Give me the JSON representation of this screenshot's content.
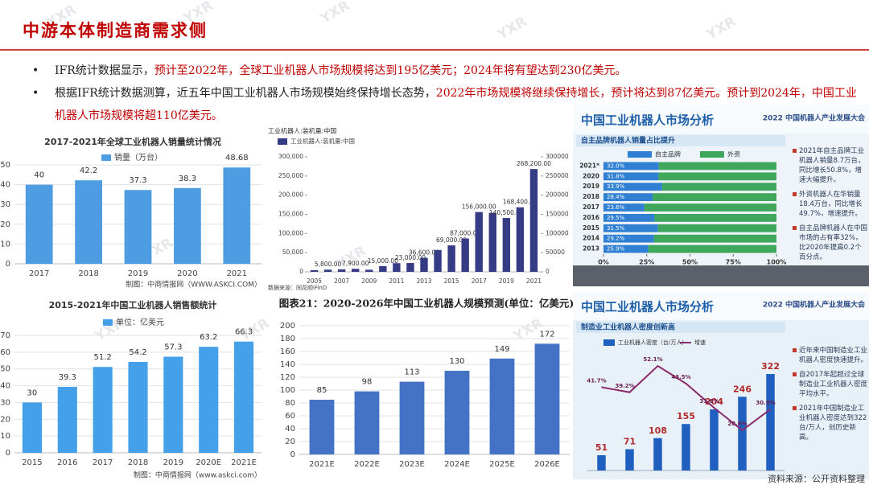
{
  "header": {
    "title": "中游本体制造商需求侧"
  },
  "bullets": [
    {
      "segments": [
        {
          "text": "IFR统计数据显示，",
          "emphasis": false
        },
        {
          "text": "预计至2022年，全球工业机器人市场规模将达到195亿美元；2024年将有望达到230亿美元。",
          "emphasis": true
        }
      ]
    },
    {
      "segments": [
        {
          "text": "根据IFR统计数据测算，近五年中国工业机器人市场规模始终保持增长态势，",
          "emphasis": false
        },
        {
          "text": "2022年市场规模将继续保持增长，预计将达到87亿美元。预计到2024年，中国工业机器人市场规模将超110亿美元。",
          "emphasis": true
        }
      ]
    }
  ],
  "watermark": "YXR",
  "source": "资料来源：公开资料整理",
  "chart_data": [
    {
      "type": "bar",
      "title": "2017-2021年全球工业机器人销量统计情况",
      "categories": [
        "2017",
        "2018",
        "2019",
        "2020",
        "2021"
      ],
      "series": [
        {
          "name": "销量（万台）",
          "color": "#4e9de3",
          "values": [
            40,
            42.2,
            37.3,
            38.3,
            48.68
          ]
        }
      ],
      "ylim": [
        0,
        50
      ],
      "yticks": [
        0,
        10,
        20,
        30,
        40,
        50
      ],
      "grid": true,
      "data_labels": true,
      "caption": "制图：中商情报网（WWW.ASKCI.COM）"
    },
    {
      "type": "bar",
      "title": "工业机器人:装机量:中国",
      "categories": [
        "2005",
        null,
        "2007",
        null,
        "2009",
        null,
        "2011",
        null,
        "2013",
        null,
        "2015",
        null,
        "2017",
        null,
        "2019",
        null,
        "2021"
      ],
      "series": [
        {
          "name": "工业机器人:装机量:中国",
          "color": "#363b86",
          "values": [
            4500,
            5800,
            6600,
            7900,
            5500,
            15000,
            22600,
            23000,
            36600,
            57000,
            69000,
            87000,
            156000,
            154000,
            140500,
            168400,
            268200
          ],
          "value_labels": [
            null,
            "5,800.00",
            null,
            "7,900.00",
            null,
            "15,000.00",
            null,
            "23,000.00",
            "36,600.00",
            null,
            "69,000.00",
            "87,000.00",
            "156,000.00",
            null,
            "140,500.00",
            "168,400.00",
            "268,200.00"
          ]
        }
      ],
      "ylim": [
        0,
        300000
      ],
      "yticks": [
        0,
        {
          "value": 50000,
          "label": "50,000"
        },
        {
          "value": 100000,
          "label": "100,000"
        },
        {
          "value": 150000,
          "label": "150,000"
        },
        {
          "value": 200000,
          "label": "200,000"
        },
        {
          "value": 250000,
          "label": "250,000"
        },
        {
          "value": 300000,
          "label": "300,000"
        }
      ],
      "y2lim": [
        0,
        300000
      ],
      "y2ticks": [
        0,
        50000,
        100000,
        150000,
        200000,
        250000,
        300000
      ],
      "grid": false,
      "caption": "数据来源：同花顺iFinD"
    },
    {
      "type": "bar",
      "title": "2015-2021年中国工业机器人销售额统计",
      "categories": [
        "2015",
        "2016",
        "2017",
        "2018",
        "2019",
        "2020E",
        "2021E"
      ],
      "series": [
        {
          "name": "单位：亿美元",
          "color": "#45a0ea",
          "values": [
            30,
            39.3,
            51.2,
            54.2,
            57.3,
            63.2,
            66.3
          ]
        }
      ],
      "ylim": [
        0,
        70
      ],
      "yticks": [
        0,
        10,
        20,
        30,
        40,
        50,
        60,
        70
      ],
      "grid": true,
      "data_labels": true,
      "caption": "制图：中商情报网（www.askci.com）"
    },
    {
      "type": "bar",
      "title": "图表21：2020-2026年中国工业机器人规模预测(单位：亿美元)",
      "categories": [
        "2021E",
        "2022E",
        "2023E",
        "2024E",
        "2025E",
        "2026E"
      ],
      "series": [
        {
          "name": "",
          "color": "#4472c4",
          "values": [
            85,
            98,
            113,
            130,
            149,
            172
          ]
        }
      ],
      "ylim": [
        0,
        200
      ],
      "yticks": [
        0,
        20,
        40,
        60,
        80,
        100,
        120,
        140,
        160,
        180,
        200
      ],
      "grid": true,
      "data_labels": true
    },
    {
      "type": "stacked_barh",
      "title": "中国工业机器人市场分析",
      "subtitle": "自主品牌机器人销量占比提升",
      "brand": "2022 中国机器人产业发展大会",
      "categories": [
        "2021*",
        "2020",
        "2019",
        "2018",
        "2017",
        "2016",
        "2015",
        "2014",
        "2013"
      ],
      "series": [
        {
          "name": "自主品牌",
          "color": "#2f7fd2",
          "values": [
            32.0,
            31.8,
            33.9,
            28.4,
            23.6,
            29.5,
            31.5,
            29.2,
            25.9
          ],
          "value_labels": [
            "32.0%",
            "31.8%",
            "33.9%",
            "28.4%",
            "23.6%",
            "29.5%",
            "31.5%",
            "29.2%",
            "25.9%"
          ]
        },
        {
          "name": "外资",
          "color": "#3ea75c",
          "values": [
            68.0,
            68.2,
            66.1,
            71.6,
            76.4,
            70.5,
            68.5,
            70.8,
            74.1
          ]
        }
      ],
      "xlim": [
        0,
        100
      ],
      "xticks": [
        {
          "value": 0,
          "label": "0%"
        },
        {
          "value": 25,
          "label": "25%"
        },
        {
          "value": 50,
          "label": "50%"
        },
        {
          "value": 75,
          "label": "75%"
        },
        {
          "value": 100,
          "label": "100%"
        }
      ],
      "annotations": [
        "2021年自主品牌工业机器人销量8.7万台，同比增长50.8%，增速大幅提升。",
        "外资机器人在华销量18.4万台，同比增长49.7%，增速提升。",
        "自主品牌机器人在中国市场的占有率32%，比2020年提高0.2个百分点。"
      ]
    },
    {
      "type": "bar_line",
      "title": "中国工业机器人市场分析",
      "subtitle": "制造业工业机器人密度创新高",
      "brand": "2022 中国机器人产业发展大会",
      "categories": [
        null,
        null,
        null,
        null,
        null,
        null,
        null
      ],
      "series": [
        {
          "name": "工业机器人密度（台/万人）",
          "color": "#1f5fbf",
          "values": [
            51,
            71,
            108,
            155,
            204,
            246,
            322
          ]
        },
        {
          "name": "增速",
          "color": "#8a2b6c",
          "axis": "y2",
          "values": [
            41.7,
            39.2,
            52.1,
            43.5,
            31.6,
            20.6,
            30.9
          ],
          "value_labels": [
            "41.7%",
            "39.2%",
            "52.1%",
            "43.5%",
            "31.6%",
            "20.6%",
            "30.9%"
          ]
        }
      ],
      "data_labels": true,
      "annotations": [
        "近年来中国制造业工业机器人密度快速提升。",
        "自2017年起超过全球制造业工业机器人密度平均水平。",
        "2021年中国制造业工业机器人密度达到322台/万人，创历史新高。"
      ]
    }
  ]
}
